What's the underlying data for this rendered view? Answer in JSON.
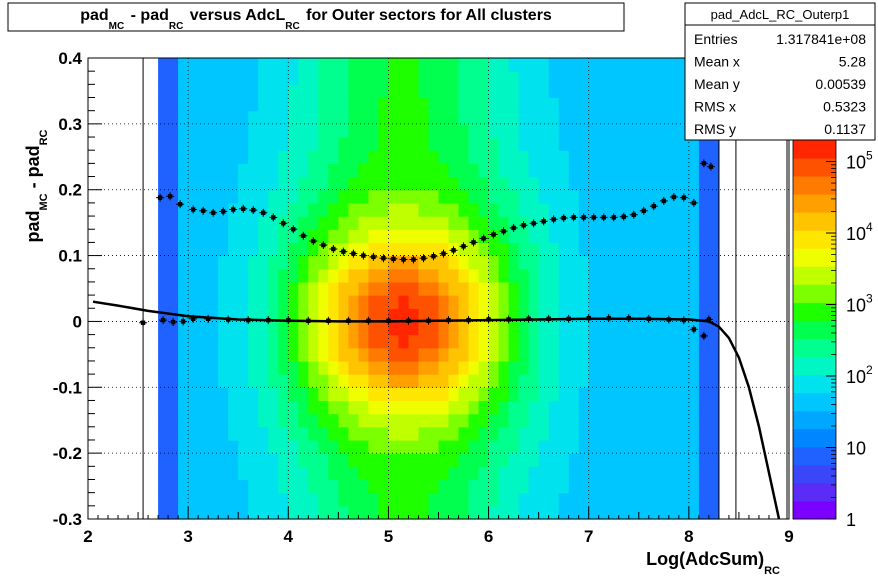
{
  "title": {
    "parts": [
      {
        "text": "pad",
        "sub": "MC"
      },
      {
        "text": " - pad",
        "sub": "RC"
      },
      {
        "text": " versus AdcL",
        "sub": "RC"
      },
      {
        "text": " for Outer sectors for All clusters",
        "sub": ""
      }
    ]
  },
  "stats_box": {
    "name": "pad_AdcL_RC_Outerp1",
    "rows": [
      {
        "label": "Entries",
        "value": "1.317841e+08"
      },
      {
        "label": "Mean x",
        "value": "5.28"
      },
      {
        "label": "Mean y",
        "value": "0.00539"
      },
      {
        "label": "RMS x",
        "value": "0.5323"
      },
      {
        "label": "RMS y",
        "value": "0.1137"
      }
    ]
  },
  "chart_data": {
    "type": "heatmap",
    "xlabel": "Log(AdcSum)",
    "xlabel_sub": "RC",
    "ylabel": "pad",
    "ylabel_sub1": "MC",
    "ylabel_mid": " - pad",
    "ylabel_sub2": "RC",
    "xlim": [
      2,
      9
    ],
    "ylim": [
      -0.3,
      0.4
    ],
    "x_ticks": [
      2,
      3,
      4,
      5,
      6,
      7,
      8,
      9
    ],
    "y_ticks": [
      -0.3,
      -0.2,
      -0.1,
      0,
      0.1,
      0.2,
      0.3,
      0.4
    ],
    "x_tick_labels": [
      "2",
      "3",
      "4",
      "5",
      "6",
      "7",
      "8",
      "9"
    ],
    "y_tick_labels": [
      "-0.3",
      "-0.2",
      "-0.1",
      "0",
      "0.1",
      "0.2",
      "0.3",
      "0.4"
    ],
    "grid": true,
    "z_scale": "log",
    "z_range": [
      1,
      200000
    ],
    "z_ticks": [
      1,
      10,
      100,
      1000,
      10000,
      100000
    ],
    "z_tick_labels": [
      {
        "base": "1",
        "exp": ""
      },
      {
        "base": "10",
        "exp": ""
      },
      {
        "base": "10",
        "exp": "2"
      },
      {
        "base": "10",
        "exp": "3"
      },
      {
        "base": "10",
        "exp": "4"
      },
      {
        "base": "10",
        "exp": "5"
      }
    ],
    "palette": [
      "#7b00ff",
      "#5a2cf5",
      "#3a46f7",
      "#1f62ff",
      "#0086ff",
      "#00a7ff",
      "#00c6ff",
      "#00e3ee",
      "#00f6c2",
      "#00ff8e",
      "#00ff4f",
      "#1eff00",
      "#7cff00",
      "#c0ff00",
      "#f0ff00",
      "#ffe600",
      "#ffc400",
      "#ff9f00",
      "#ff7a00",
      "#ff5200",
      "#ff2600"
    ],
    "reference_lines_x": [
      2.55,
      8.3,
      8.47,
      8.98
    ],
    "profile_rms": {
      "x": [
        2.72,
        2.82,
        2.92,
        3.05,
        3.15,
        3.25,
        3.35,
        3.45,
        3.55,
        3.65,
        3.75,
        3.85,
        3.95,
        4.05,
        4.15,
        4.25,
        4.35,
        4.45,
        4.55,
        4.65,
        4.75,
        4.85,
        4.95,
        5.05,
        5.15,
        5.25,
        5.35,
        5.45,
        5.55,
        5.65,
        5.75,
        5.85,
        5.95,
        6.05,
        6.15,
        6.25,
        6.35,
        6.45,
        6.55,
        6.65,
        6.75,
        6.85,
        6.95,
        7.05,
        7.15,
        7.25,
        7.35,
        7.45,
        7.55,
        7.65,
        7.75,
        7.85,
        7.95,
        8.05,
        8.15,
        8.22
      ],
      "y": [
        0.188,
        0.19,
        0.178,
        0.17,
        0.168,
        0.165,
        0.167,
        0.17,
        0.171,
        0.169,
        0.165,
        0.158,
        0.149,
        0.14,
        0.13,
        0.122,
        0.116,
        0.11,
        0.106,
        0.103,
        0.1,
        0.098,
        0.096,
        0.095,
        0.094,
        0.094,
        0.096,
        0.099,
        0.103,
        0.108,
        0.114,
        0.12,
        0.126,
        0.132,
        0.137,
        0.142,
        0.146,
        0.149,
        0.152,
        0.155,
        0.157,
        0.158,
        0.158,
        0.158,
        0.158,
        0.158,
        0.159,
        0.162,
        0.168,
        0.175,
        0.183,
        0.189,
        0.188,
        0.18,
        0.24,
        0.235
      ]
    },
    "profile_mean": {
      "x": [
        2.55,
        2.75,
        2.85,
        2.95,
        3.05,
        3.2,
        3.4,
        3.6,
        3.8,
        4.0,
        4.2,
        4.4,
        4.6,
        4.8,
        5.0,
        5.2,
        5.4,
        5.6,
        5.8,
        6.0,
        6.2,
        6.4,
        6.6,
        6.8,
        7.0,
        7.2,
        7.4,
        7.6,
        7.8,
        7.95,
        8.05,
        8.15,
        8.2
      ],
      "y": [
        -0.002,
        0.002,
        -0.001,
        0.0,
        0.004,
        0.004,
        0.003,
        0.002,
        0.002,
        0.002,
        0.001,
        0.001,
        0.001,
        0.001,
        0.001,
        0.001,
        0.001,
        0.002,
        0.002,
        0.003,
        0.003,
        0.004,
        0.004,
        0.004,
        0.005,
        0.005,
        0.005,
        0.004,
        0.003,
        0.002,
        -0.012,
        -0.022,
        0.003
      ]
    },
    "fit_curve": {
      "x": [
        2.05,
        2.3,
        2.6,
        3.0,
        3.5,
        4.0,
        4.5,
        5.0,
        5.5,
        6.0,
        6.5,
        7.0,
        7.5,
        8.0,
        8.2,
        8.3,
        8.4,
        8.5,
        8.6,
        8.7,
        8.8,
        8.9
      ],
      "y": [
        0.03,
        0.024,
        0.016,
        0.008,
        0.003,
        0.001,
        0.0,
        0.0,
        0.001,
        0.002,
        0.003,
        0.004,
        0.004,
        0.003,
        0.0,
        -0.008,
        -0.025,
        -0.055,
        -0.1,
        -0.16,
        -0.23,
        -0.3
      ]
    }
  }
}
